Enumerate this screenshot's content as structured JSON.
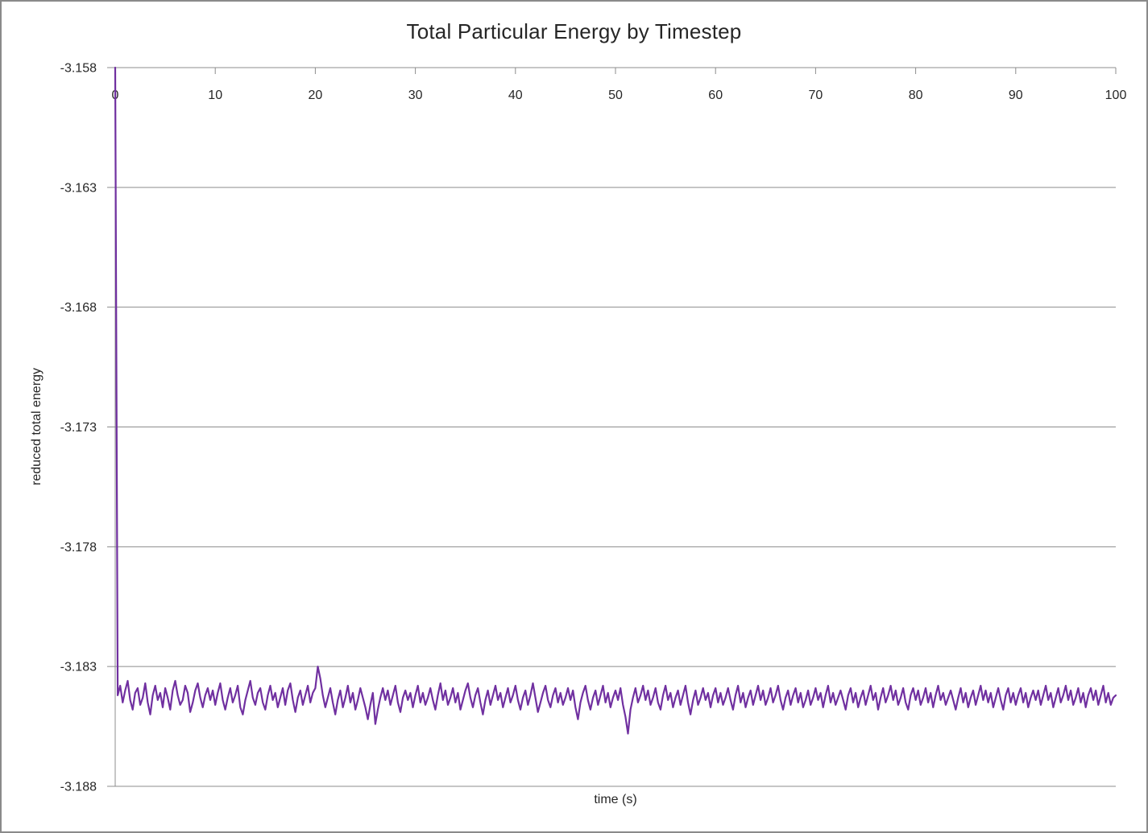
{
  "window": {
    "background": "#ffffff",
    "border_color": "#8a8a8a"
  },
  "colors": {
    "series": "#7030A0",
    "gridline": "#8C8C8C",
    "axis": "#8C8C8C",
    "text": "#262626"
  },
  "chart_data": {
    "type": "line",
    "title": "Total Particular Energy by Timestep",
    "xlabel": "time (s)",
    "ylabel": "reduced total energy",
    "xlim": [
      0,
      100
    ],
    "ylim": [
      -3.188,
      -3.158
    ],
    "x_ticks": [
      0,
      10,
      20,
      30,
      40,
      50,
      60,
      70,
      80,
      90,
      100
    ],
    "x_tick_labels": [
      "0",
      "10",
      "20",
      "30",
      "40",
      "50",
      "60",
      "70",
      "80",
      "90",
      "100"
    ],
    "x_tick_label_side": "top",
    "y_ticks": [
      -3.158,
      -3.163,
      -3.168,
      -3.173,
      -3.178,
      -3.183,
      -3.188
    ],
    "y_tick_labels": [
      "-3.158",
      "-3.163",
      "-3.168",
      "-3.173",
      "-3.178",
      "-3.183",
      "-3.188"
    ],
    "grid": "horizontal",
    "legend": "none",
    "series": [
      {
        "name": "reduced total energy",
        "color": "#7030A0",
        "x_start": 0,
        "x_step": 0.25,
        "value_base": -3.18,
        "value_scale": 0.0001,
        "values_scaled": [
          220,
          -42,
          -38,
          -45,
          -40,
          -36,
          -44,
          -48,
          -41,
          -39,
          -46,
          -43,
          -37,
          -45,
          -50,
          -42,
          -38,
          -44,
          -41,
          -47,
          -39,
          -43,
          -48,
          -40,
          -36,
          -42,
          -46,
          -44,
          -38,
          -41,
          -49,
          -45,
          -40,
          -37,
          -43,
          -47,
          -42,
          -39,
          -44,
          -40,
          -46,
          -41,
          -37,
          -44,
          -48,
          -43,
          -39,
          -45,
          -42,
          -38,
          -47,
          -50,
          -44,
          -40,
          -36,
          -43,
          -46,
          -41,
          -39,
          -45,
          -48,
          -42,
          -38,
          -44,
          -41,
          -47,
          -43,
          -39,
          -46,
          -40,
          -37,
          -44,
          -49,
          -43,
          -40,
          -46,
          -42,
          -38,
          -45,
          -41,
          -39,
          -30,
          -35,
          -42,
          -47,
          -43,
          -39,
          -45,
          -50,
          -44,
          -40,
          -47,
          -43,
          -38,
          -45,
          -41,
          -48,
          -44,
          -39,
          -43,
          -47,
          -52,
          -46,
          -41,
          -54,
          -48,
          -43,
          -39,
          -44,
          -40,
          -46,
          -42,
          -38,
          -45,
          -49,
          -43,
          -40,
          -44,
          -41,
          -47,
          -42,
          -38,
          -45,
          -41,
          -46,
          -43,
          -39,
          -44,
          -48,
          -42,
          -37,
          -44,
          -40,
          -46,
          -43,
          -39,
          -45,
          -41,
          -48,
          -44,
          -40,
          -37,
          -43,
          -47,
          -42,
          -39,
          -45,
          -50,
          -44,
          -40,
          -46,
          -42,
          -38,
          -44,
          -41,
          -47,
          -43,
          -39,
          -45,
          -42,
          -38,
          -44,
          -48,
          -43,
          -40,
          -46,
          -42,
          -37,
          -43,
          -49,
          -45,
          -41,
          -38,
          -44,
          -47,
          -42,
          -39,
          -45,
          -41,
          -46,
          -43,
          -39,
          -44,
          -40,
          -47,
          -52,
          -45,
          -41,
          -38,
          -44,
          -48,
          -43,
          -40,
          -46,
          -42,
          -38,
          -45,
          -41,
          -47,
          -43,
          -40,
          -44,
          -39,
          -46,
          -51,
          -58,
          -48,
          -43,
          -39,
          -45,
          -42,
          -38,
          -44,
          -40,
          -46,
          -43,
          -39,
          -45,
          -48,
          -42,
          -38,
          -44,
          -41,
          -47,
          -43,
          -40,
          -46,
          -42,
          -38,
          -45,
          -50,
          -44,
          -40,
          -46,
          -43,
          -39,
          -44,
          -41,
          -47,
          -42,
          -39,
          -45,
          -41,
          -46,
          -43,
          -39,
          -44,
          -48,
          -42,
          -38,
          -45,
          -41,
          -47,
          -43,
          -40,
          -46,
          -42,
          -38,
          -44,
          -40,
          -46,
          -43,
          -39,
          -45,
          -42,
          -38,
          -44,
          -48,
          -43,
          -40,
          -46,
          -42,
          -39,
          -45,
          -41,
          -47,
          -44,
          -40,
          -46,
          -43,
          -39,
          -44,
          -41,
          -47,
          -42,
          -38,
          -45,
          -41,
          -46,
          -43,
          -40,
          -44,
          -48,
          -42,
          -39,
          -45,
          -41,
          -47,
          -43,
          -40,
          -46,
          -42,
          -38,
          -44,
          -41,
          -48,
          -43,
          -39,
          -45,
          -42,
          -38,
          -44,
          -40,
          -46,
          -43,
          -39,
          -45,
          -48,
          -42,
          -39,
          -44,
          -40,
          -46,
          -43,
          -39,
          -45,
          -41,
          -47,
          -42,
          -38,
          -44,
          -41,
          -46,
          -43,
          -40,
          -44,
          -48,
          -43,
          -39,
          -45,
          -41,
          -47,
          -43,
          -40,
          -46,
          -42,
          -38,
          -44,
          -40,
          -45,
          -41,
          -47,
          -43,
          -39,
          -44,
          -48,
          -42,
          -39,
          -45,
          -41,
          -46,
          -42,
          -39,
          -45,
          -41,
          -47,
          -43,
          -40,
          -44,
          -40,
          -46,
          -42,
          -38,
          -44,
          -41,
          -47,
          -43,
          -39,
          -45,
          -42,
          -38,
          -44,
          -40,
          -46,
          -43,
          -39,
          -45,
          -41,
          -47,
          -42,
          -39,
          -44,
          -40,
          -46,
          -42,
          -38,
          -45,
          -41,
          -46,
          -43,
          -42
        ]
      }
    ]
  }
}
